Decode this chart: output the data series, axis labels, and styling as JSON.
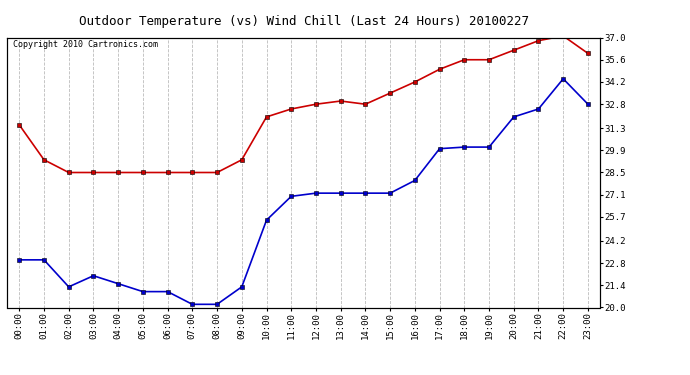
{
  "title": "Outdoor Temperature (vs) Wind Chill (Last 24 Hours) 20100227",
  "copyright": "Copyright 2010 Cartronics.com",
  "hours": [
    "00:00",
    "01:00",
    "02:00",
    "03:00",
    "04:00",
    "05:00",
    "06:00",
    "07:00",
    "08:00",
    "09:00",
    "10:00",
    "11:00",
    "12:00",
    "13:00",
    "14:00",
    "15:00",
    "16:00",
    "17:00",
    "18:00",
    "19:00",
    "20:00",
    "21:00",
    "22:00",
    "23:00"
  ],
  "temp": [
    31.5,
    29.3,
    28.5,
    28.5,
    28.5,
    28.5,
    28.5,
    28.5,
    28.5,
    29.3,
    32.0,
    32.5,
    32.8,
    33.0,
    32.8,
    33.5,
    34.2,
    35.0,
    35.6,
    35.6,
    36.2,
    36.8,
    37.1,
    36.0
  ],
  "windchill": [
    23.0,
    23.0,
    21.3,
    22.0,
    21.5,
    21.0,
    21.0,
    20.2,
    20.2,
    21.3,
    25.5,
    27.0,
    27.2,
    27.2,
    27.2,
    27.2,
    28.0,
    30.0,
    30.1,
    30.1,
    32.0,
    32.5,
    34.4,
    32.8
  ],
  "temp_color": "#cc0000",
  "windchill_color": "#0000cc",
  "bg_color": "#ffffff",
  "grid_color": "#bbbbbb",
  "ylim_min": 20.0,
  "ylim_max": 37.0,
  "yticks": [
    20.0,
    21.4,
    22.8,
    24.2,
    25.7,
    27.1,
    28.5,
    29.9,
    31.3,
    32.8,
    34.2,
    35.6,
    37.0
  ],
  "title_fontsize": 9,
  "copyright_fontsize": 6,
  "tick_fontsize": 6.5,
  "marker": "s",
  "markersize": 3,
  "linewidth": 1.2
}
